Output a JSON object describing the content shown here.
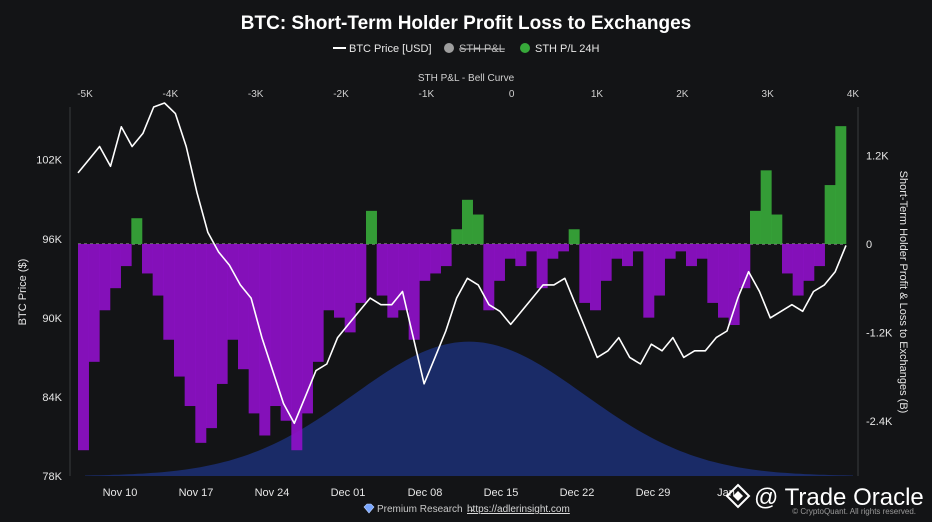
{
  "chart_data": {
    "type": "line",
    "title": "BTC: Short-Term Holder Profit Loss to Exchanges",
    "top_axis_label": "STH P&L - Bell Curve",
    "top_ticks": [
      "-5K",
      "-4K",
      "-3K",
      "-2K",
      "-1K",
      "0",
      "1K",
      "2K",
      "3K",
      "4K"
    ],
    "top_range": [
      -5000,
      4000
    ],
    "x_ticks": [
      "Nov 10",
      "Nov 17",
      "Nov 24",
      "Dec 01",
      "Dec 08",
      "Dec 15",
      "Dec 22",
      "Dec 29",
      "Jan"
    ],
    "ylabel": "BTC Price ($)",
    "ylabel_right": "Short-Term Holder Profit & Loss to Exchanges (B)",
    "y_ticks": [
      "102K",
      "96K",
      "90K",
      "84K",
      "78K"
    ],
    "y_tick_values": [
      102000,
      96000,
      90000,
      84000,
      78000
    ],
    "ylim": [
      78000,
      106000
    ],
    "y2_ticks": [
      "1.2K",
      "0",
      "-1.2K",
      "-2.4K"
    ],
    "y2_tick_values": [
      1200,
      0,
      -1200,
      -2400
    ],
    "y2lim": [
      -3150,
      1860
    ],
    "legend": [
      {
        "name": "BTC Price [USD]",
        "color": "#ffffff",
        "marker": "line"
      },
      {
        "name": "STH P&L",
        "color": "#9e9e9e",
        "marker": "dot",
        "hidden": true
      },
      {
        "name": "STH P/L 24H",
        "color": "#37a83a",
        "marker": "dot"
      }
    ],
    "colors": {
      "profit": "#37a83a",
      "loss": "#8e10c8",
      "bell": "#1a2c6b",
      "price": "#ffffff",
      "background": "#131416"
    },
    "bell_curve": {
      "mean": -500,
      "std": 1350,
      "peak": 560
    },
    "series": [
      {
        "name": "BTC Price [USD]",
        "axis": "left",
        "values": [
          101000,
          102000,
          103000,
          101500,
          104500,
          103000,
          104000,
          106000,
          106300,
          105500,
          103000,
          99500,
          96500,
          95000,
          94000,
          92500,
          91500,
          88500,
          86000,
          83500,
          82000,
          84000,
          86000,
          86500,
          88500,
          89500,
          90500,
          91500,
          91000,
          91000,
          92000,
          88500,
          85000,
          87000,
          89000,
          91500,
          93000,
          92500,
          91000,
          90500,
          89500,
          90500,
          91500,
          92500,
          92500,
          93000,
          91000,
          89000,
          87000,
          87500,
          88500,
          87000,
          86500,
          88000,
          87500,
          88500,
          87000,
          87500,
          87500,
          88500,
          89000,
          91500,
          93500,
          92000,
          90000,
          90500,
          91000,
          90500,
          92000,
          92500,
          93500,
          95500
        ]
      },
      {
        "name": "STH P/L 24H",
        "axis": "right",
        "values": [
          -2800,
          -1600,
          -900,
          -600,
          -300,
          350,
          -400,
          -700,
          -1300,
          -1800,
          -2200,
          -2700,
          -2500,
          -1900,
          -1300,
          -1700,
          -2300,
          -2600,
          -2200,
          -2400,
          -2800,
          -2300,
          -1600,
          -900,
          -1000,
          -1200,
          -800,
          450,
          -700,
          -1000,
          -900,
          -1300,
          -500,
          -400,
          -300,
          200,
          600,
          400,
          -900,
          -500,
          -200,
          -300,
          -100,
          -600,
          -200,
          -100,
          200,
          -800,
          -900,
          -500,
          -200,
          -300,
          -100,
          -1000,
          -700,
          -200,
          -100,
          -300,
          -200,
          -800,
          -1000,
          -1100,
          -600,
          450,
          1000,
          400,
          -400,
          -700,
          -500,
          -300,
          800,
          1600
        ]
      }
    ]
  },
  "footer": {
    "text": "Premium Research →",
    "link": "https://adlerinsight.com",
    "watermark": "@ Trade Oracle",
    "copyright": "© CryptoQuant. All rights reserved."
  }
}
